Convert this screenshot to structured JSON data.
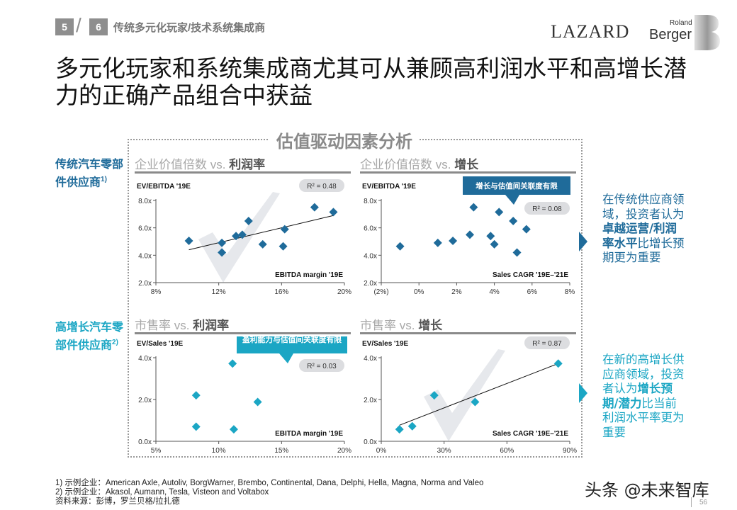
{
  "header": {
    "section_current": "5",
    "section_total": "6",
    "section_title": "传统多元化玩家/技术系统集成商",
    "logo_lazard": "LAZARD",
    "logo_rb_roland": "Roland",
    "logo_rb_berger": "Berger"
  },
  "title": "多元化玩家和系统集成商尤其可从兼顾高利润水平和高增长潜力的正确产品组合中获益",
  "frame_title": "估值驱动因素分析",
  "segments": [
    {
      "label": "传统汽车零部件供应商",
      "note": "1)",
      "color": "#1f6b9a"
    },
    {
      "label": "高增长汽车零部件供应商",
      "note": "2)",
      "color": "#1ba6c4"
    }
  ],
  "insights": [
    {
      "pre": "在传统供应商领域，投资者认为",
      "bold": "卓越运营/利润率水平",
      "post": "比增长预期更为重要",
      "color": "#1f6b9a"
    },
    {
      "pre": "在新的高增长供应商领域，投资者认为",
      "bold": "增长预期/潜力",
      "post": "比当前利润水平率更为重要",
      "color": "#1ba6c4"
    }
  ],
  "chart_data": [
    {
      "type": "scatter",
      "title_prefix": "企业价值倍数 vs.",
      "title_bold": "利润率",
      "ylabel": "EV/EBITDA '19E",
      "xlabel": "EBITDA margin '19E",
      "xlim": [
        8,
        20
      ],
      "ylim": [
        2,
        8
      ],
      "xticks": [
        8,
        12,
        16,
        20
      ],
      "xtick_labels": [
        "8%",
        "12%",
        "16%",
        "20%"
      ],
      "yticks": [
        2,
        4,
        6,
        8
      ],
      "ytick_labels": [
        "2.0x",
        "4.0x",
        "6.0x",
        "8.0x"
      ],
      "color": "#1f6b9a",
      "points": [
        [
          10.1,
          5.05
        ],
        [
          12.2,
          4.9
        ],
        [
          12.2,
          4.2
        ],
        [
          13.1,
          5.4
        ],
        [
          13.5,
          5.5
        ],
        [
          13.9,
          6.5
        ],
        [
          14.8,
          4.8
        ],
        [
          16.2,
          5.9
        ],
        [
          16.1,
          4.65
        ],
        [
          18.1,
          7.5
        ],
        [
          19.3,
          7.15
        ]
      ],
      "trendline": [
        [
          10.1,
          4.4
        ],
        [
          19.3,
          6.9
        ]
      ],
      "r2": "R² = 0.48",
      "callout": null,
      "watermark": true
    },
    {
      "type": "scatter",
      "title_prefix": "企业价值倍数 vs.",
      "title_bold": "增长",
      "ylabel": "EV/EBITDA '19E",
      "xlabel": "Sales CAGR '19E–'21E",
      "xlim": [
        -2,
        8
      ],
      "ylim": [
        2,
        8
      ],
      "xticks": [
        -2,
        0,
        2,
        4,
        6,
        8
      ],
      "xtick_labels": [
        "(2%)",
        "0%",
        "2%",
        "4%",
        "6%",
        "8%"
      ],
      "yticks": [
        2,
        4,
        6,
        8
      ],
      "ytick_labels": [
        "2.0x",
        "4.0x",
        "6.0x",
        "8.0x"
      ],
      "color": "#1f6b9a",
      "points": [
        [
          -1.0,
          4.65
        ],
        [
          1.0,
          4.9
        ],
        [
          1.8,
          5.05
        ],
        [
          2.7,
          5.5
        ],
        [
          2.9,
          7.5
        ],
        [
          3.8,
          5.4
        ],
        [
          4.0,
          4.8
        ],
        [
          4.25,
          7.15
        ],
        [
          5.0,
          6.5
        ],
        [
          5.2,
          4.2
        ],
        [
          5.7,
          5.9
        ]
      ],
      "trendline": null,
      "r2": "R² = 0.08",
      "callout": "增长与估值间关联度有限",
      "watermark": false
    },
    {
      "type": "scatter",
      "title_prefix": "市售率 vs.",
      "title_bold": "利润率",
      "ylabel": "EV/Sales '19E",
      "xlabel": "EBITDA margin '19E",
      "xlim": [
        5,
        20
      ],
      "ylim": [
        0,
        4
      ],
      "xticks": [
        5,
        10,
        15,
        20
      ],
      "xtick_labels": [
        "5%",
        "10%",
        "15%",
        "20%"
      ],
      "yticks": [
        0,
        2,
        4
      ],
      "ytick_labels": [
        "0.0x",
        "2.0x",
        "4.0x"
      ],
      "color": "#1ba6c4",
      "points": [
        [
          8.2,
          2.2
        ],
        [
          8.2,
          0.7
        ],
        [
          11.1,
          3.72
        ],
        [
          11.2,
          0.57
        ],
        [
          13.1,
          1.88
        ]
      ],
      "trendline": null,
      "r2": "R² = 0.03",
      "callout": "盈利能力与估值间关联度有限",
      "watermark": false
    },
    {
      "type": "scatter",
      "title_prefix": "市售率 vs.",
      "title_bold": "增长",
      "ylabel": "EV/Sales '19E",
      "xlabel": "Sales CAGR '19E–'21E",
      "xlim": [
        0,
        90
      ],
      "ylim": [
        0,
        4
      ],
      "xticks": [
        0,
        30,
        60,
        90
      ],
      "xtick_labels": [
        "0%",
        "30%",
        "60%",
        "90%"
      ],
      "yticks": [
        0,
        2,
        4
      ],
      "ytick_labels": [
        "0.0x",
        "2.0x",
        "4.0x"
      ],
      "color": "#1ba6c4",
      "points": [
        [
          8.7,
          0.57
        ],
        [
          14.8,
          0.72
        ],
        [
          25.3,
          2.2
        ],
        [
          44.8,
          1.88
        ],
        [
          84.5,
          3.72
        ]
      ],
      "trendline": [
        [
          8.7,
          0.77
        ],
        [
          84.5,
          3.72
        ]
      ],
      "r2": "R² = 0.87",
      "callout": null,
      "watermark": true
    }
  ],
  "footnotes": [
    "1) 示例企业：American Axle, Autoliv, BorgWarner, Brembo, Continental, Dana, Delphi, Hella, Magna, Norma and Valeo",
    "2) 示例企业：Akasol, Aumann, Tesla, Visteon and Voltabox",
    "资料来源：彭博，罗兰贝格/拉扎德"
  ],
  "watermark_text": "头条 @未来智库",
  "page_number": "56"
}
